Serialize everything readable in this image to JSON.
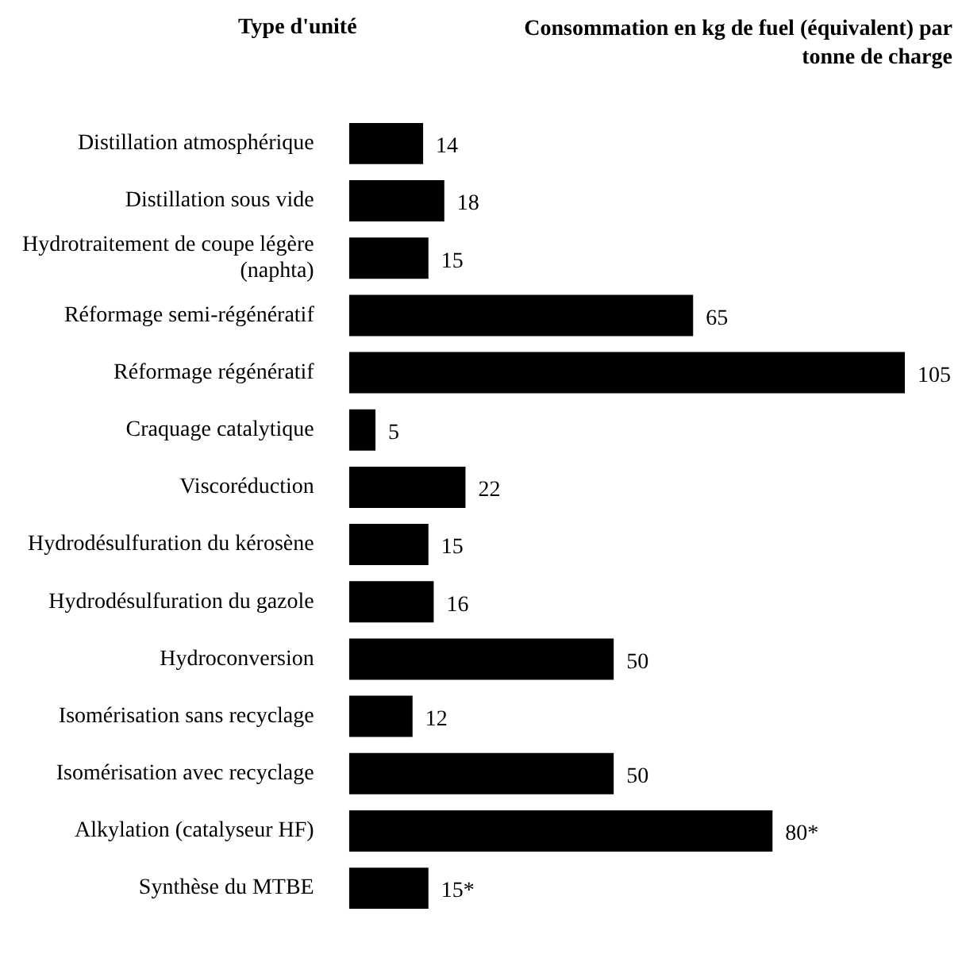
{
  "chart_data": {
    "type": "bar",
    "orientation": "horizontal",
    "ylabel": "Type d'unité",
    "title": "Consommation en kg de fuel (équivalent) par tonne de charge",
    "categories": [
      "Distillation atmosphérique",
      "Distillation sous vide",
      "Hydrotraitement de coupe légère (naphta)",
      "Réformage semi-régénératif",
      "Réformage régénératif",
      "Craquage catalytique",
      "Viscoréduction",
      "Hydrodésulfuration du kérosène",
      "Hydrodésulfuration du gazole",
      "Hydroconversion",
      "Isomérisation sans recyclage",
      "Isomérisation avec recyclage",
      "Alkylation (catalyseur HF)",
      "Synthèse du MTBE"
    ],
    "values": [
      14,
      18,
      15,
      65,
      105,
      5,
      22,
      15,
      16,
      50,
      12,
      50,
      80,
      15
    ],
    "value_labels": [
      "14",
      "18",
      "15",
      "65",
      "105",
      "5",
      "22",
      "15",
      "16",
      "50",
      "12",
      "50",
      "80*",
      "15*"
    ],
    "color": "#000000",
    "legend": false,
    "tick_labels": "y"
  }
}
